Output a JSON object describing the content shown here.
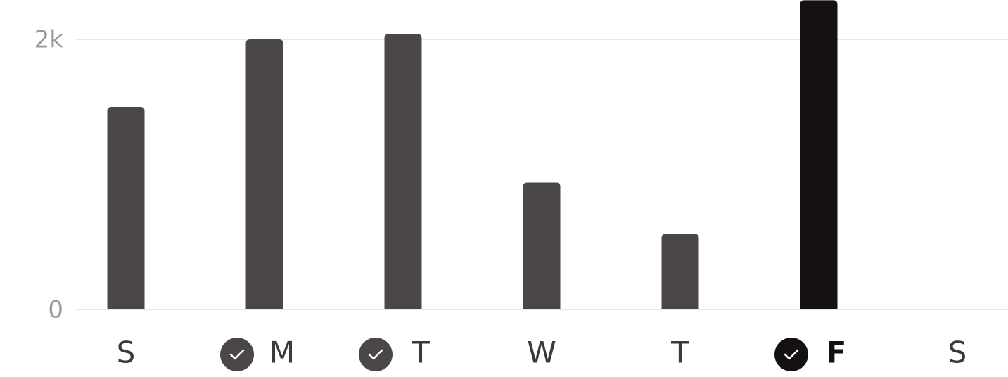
{
  "chart_data": {
    "type": "bar",
    "categories": [
      "S",
      "M",
      "T",
      "W",
      "T",
      "F",
      "S"
    ],
    "values": [
      1500,
      2000,
      2040,
      940,
      560,
      2290,
      null
    ],
    "checked": [
      false,
      true,
      true,
      false,
      false,
      true,
      false
    ],
    "selected": 5,
    "color": "#4b4749",
    "selected_color": "#141014",
    "ylim": [
      0,
      2292
    ],
    "yticks": [
      0,
      {
        "value": 2000,
        "label": "2k"
      }
    ],
    "grid": true
  }
}
